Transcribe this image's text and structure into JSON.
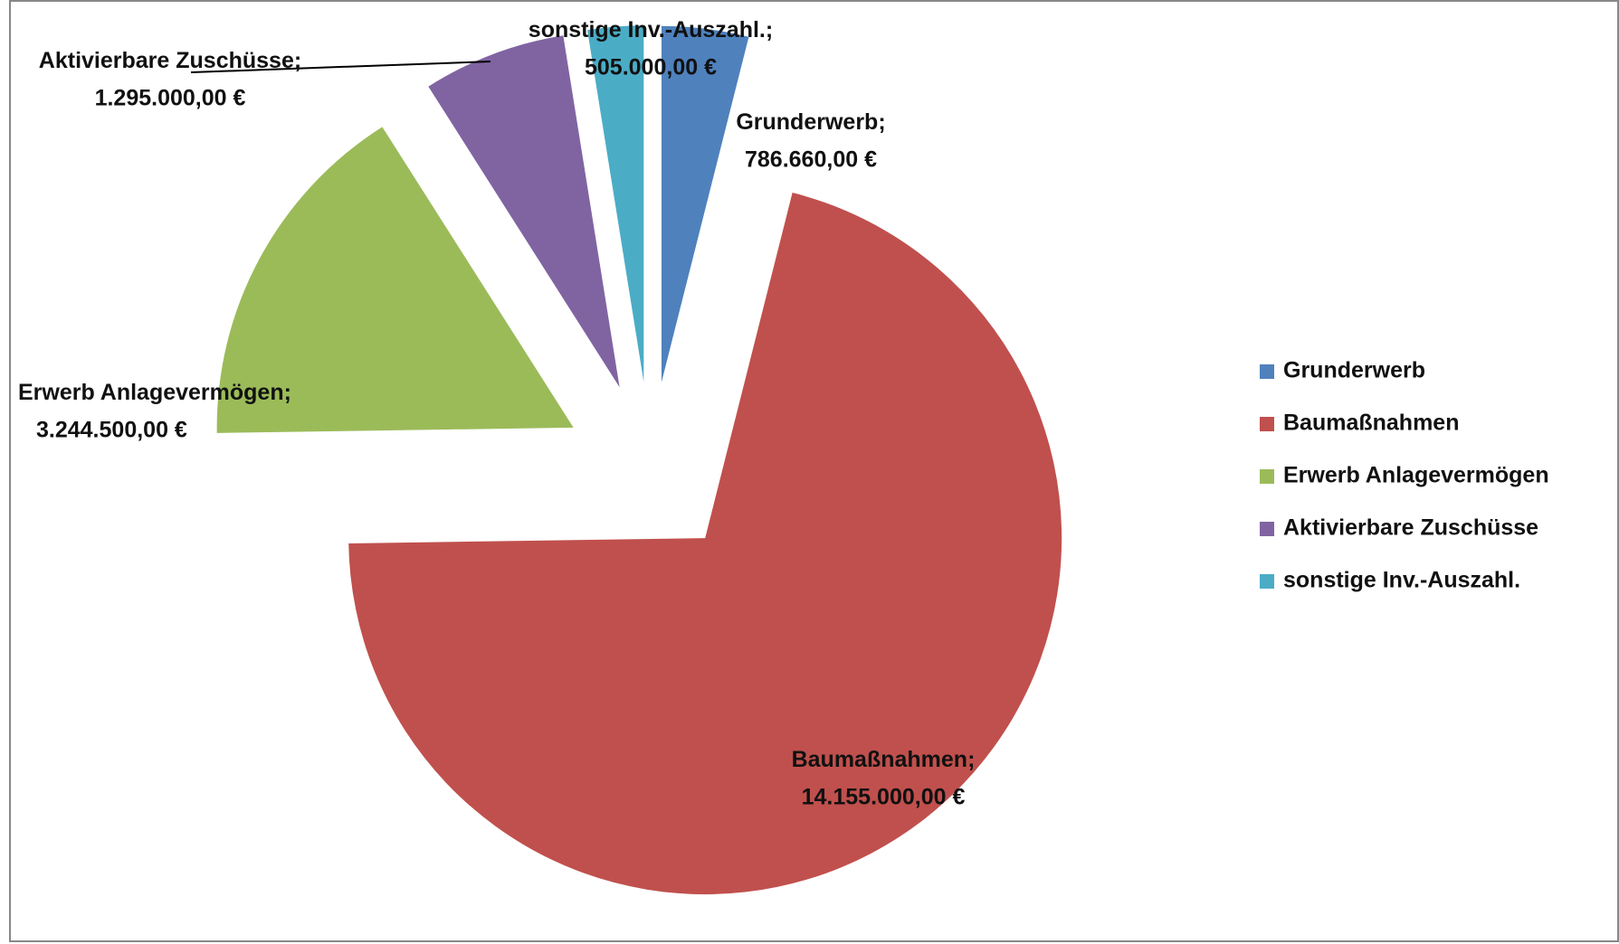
{
  "chart_data": {
    "type": "pie",
    "categories": [
      "Grunderwerb",
      "Baumaßnahmen",
      "Erwerb Anlagevermögen",
      "Aktivierbare Zuschüsse",
      "sonstige Inv.-Auszahl."
    ],
    "values": [
      786660,
      14155000,
      3244500,
      1295000,
      505000
    ],
    "value_labels": [
      "786.660,00 €",
      "14.155.000,00 €",
      "3.244.500,00 €",
      "1.295.000,00 €",
      "505.000,00 €"
    ],
    "label_separator": ";",
    "colors": [
      "#4f81bd",
      "#c0504d",
      "#9bbb59",
      "#8064a2",
      "#4bacc6"
    ],
    "legend": "right"
  }
}
